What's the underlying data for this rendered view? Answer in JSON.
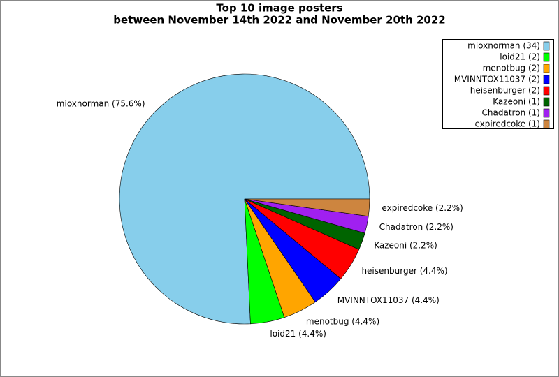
{
  "chart_data": {
    "type": "pie",
    "title": [
      "Top 10 image posters",
      "between November 14th 2022 and November 20th 2022"
    ],
    "categories": [
      "mioxnorman (34)",
      "loid21 (2)",
      "menotbug (2)",
      "MVINNTOX11037 (2)",
      "heisenburger (2)",
      "Kazeoni (1)",
      "Chadatron (1)",
      "expiredcoke (1)"
    ],
    "values": [
      75.6,
      4.4,
      4.4,
      4.4,
      4.4,
      2.2,
      2.2,
      2.2
    ],
    "value_labels": [
      "mioxnorman (75.6%)",
      "loid21 (4.4%)",
      "menotbug (4.4%)",
      "MVINNTOX11037 (4.4%)",
      "heisenburger (4.4%)",
      "Kazeoni (2.2%)",
      "Chadatron (2.2%)",
      "expiredcoke (2.2%)"
    ],
    "colors": [
      "#87ceeb",
      "#00ff00",
      "#ffa500",
      "#0000ff",
      "#ff0000",
      "#006400",
      "#a020f0",
      "#cd853f"
    ],
    "legend": "upper right"
  }
}
